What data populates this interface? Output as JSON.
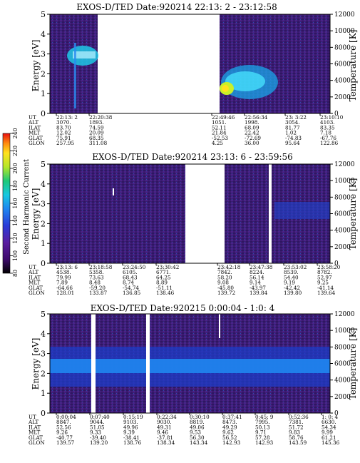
{
  "chart_data": [
    {
      "type": "heatmap",
      "title": "EXOS-D/TED   Date:920214  22:13: 2 - 23:12:58",
      "ylabel": "Energy [eV]",
      "ylim": [
        0,
        5
      ],
      "yticks": [
        "0",
        "1",
        "2",
        "3",
        "4",
        "5"
      ],
      "y2label": "Temperature [K]",
      "y2lim": [
        0,
        12000
      ],
      "y2ticks": [
        "0",
        "2000",
        "4000",
        "6000",
        "8000",
        "10000",
        "12000"
      ],
      "time_range": [
        "22:13:02",
        "23:12:58"
      ],
      "data_gaps": [
        [
          "22:21:00",
          "22:49:30"
        ]
      ],
      "bright_features": [
        {
          "time": [
            "22:15:30",
            "22:19:30"
          ],
          "energy": [
            2.3,
            3.2
          ],
          "level": "high"
        },
        {
          "time": [
            "22:50:00",
            "22:53:30"
          ],
          "energy": [
            0.7,
            1.6
          ],
          "level": "very high"
        },
        {
          "time": [
            "22:50:30",
            "22:59:00"
          ],
          "energy": [
            0.5,
            2.7
          ],
          "level": "high"
        }
      ],
      "ephemeris": {
        "labels": [
          "UT",
          "ALT",
          "ILAT",
          "MLT",
          "GLAT",
          "GLON"
        ],
        "columns": [
          [
            "22:13: 2",
            "3070.",
            "83.70",
            "12.02",
            "75.91",
            "257.95"
          ],
          [
            "22:20:38",
            "1893.",
            "74.59",
            "20.09",
            "68.35",
            "311.08"
          ],
          [
            "22:49:46",
            "1051.",
            "52.11",
            "21.84",
            "-52.53",
            "4.25"
          ],
          [
            "22:56:34",
            "1998.",
            "68.09",
            "22.42",
            "-72.69",
            "36.00"
          ],
          [
            "23: 3:22",
            "3054.",
            "81.77",
            "1.02",
            "-74.83",
            "95.64"
          ],
          [
            "23:10:10",
            "4103.",
            "83.35",
            "7.18",
            "-67.76",
            "122.86"
          ]
        ]
      }
    },
    {
      "type": "heatmap",
      "title": "EXOS-D/TED   Date:920214  23:13: 6 - 23:59:56",
      "ylabel": "Energy [eV]",
      "ylim": [
        0,
        5
      ],
      "yticks": [
        "0",
        "1",
        "2",
        "3",
        "4",
        "5"
      ],
      "y2label": "Temperature [K]",
      "y2lim": [
        0,
        12000
      ],
      "y2ticks": [
        "0",
        "2000",
        "4000",
        "6000",
        "8000",
        "10000",
        "12000"
      ],
      "time_range": [
        "23:13:06",
        "23:59:56"
      ],
      "data_gaps": [
        [
          "23:39:40",
          "23:42:10"
        ],
        [
          "23:50:10",
          "23:50:40"
        ]
      ],
      "bright_features": [
        {
          "time": [
            "23:50:40",
            "23:59:56"
          ],
          "energy": [
            2.0,
            2.8
          ],
          "level": "medium"
        }
      ],
      "ephemeris": {
        "labels": [
          "UT",
          "ALT",
          "ILAT",
          "MLT",
          "GLAT",
          "GLON"
        ],
        "columns": [
          [
            "23:13: 6",
            "4538.",
            "79.99",
            "7.89",
            "-64.66",
            "128.01"
          ],
          [
            "23:18:58",
            "5358.",
            "73.63",
            "8.48",
            "-59.20",
            "133.87"
          ],
          [
            "23:24:50",
            "6105.",
            "68.43",
            "8.74",
            "-54.74",
            "136.85"
          ],
          [
            "23:30:42",
            "6771.",
            "64.25",
            "8.89",
            "-51.11",
            "138.46"
          ],
          [
            "23:42:18",
            "7842.",
            "58.20",
            "9.08",
            "-45.80",
            "139.72"
          ],
          [
            "23:47:38",
            "8224.",
            "56.14",
            "9.14",
            "-43.97",
            "139.84"
          ],
          [
            "23:53:02",
            "8539.",
            "54.40",
            "9.19",
            "-42.42",
            "139.80"
          ],
          [
            "23:58:20",
            "8782.",
            "52.97",
            "9.25",
            "-41.14",
            "139.64"
          ]
        ]
      }
    },
    {
      "type": "heatmap",
      "title": "EXOS-D/TED   Date:920215  0:00:04 - 1:0: 4",
      "ylabel": "Energy [eV]",
      "ylim": [
        0,
        5
      ],
      "yticks": [
        "0",
        "1",
        "2",
        "3",
        "4",
        "5"
      ],
      "y2label": "Temperature [K]",
      "y2lim": [
        0,
        12000
      ],
      "y2ticks": [
        "0",
        "2000",
        "4000",
        "6000",
        "8000",
        "10000",
        "12000"
      ],
      "time_range": [
        "0:00:04",
        "1:00:04"
      ],
      "data_gaps": [
        [
          "0:06:10",
          "0:07:40"
        ],
        [
          "0:24:50",
          "0:26:20"
        ]
      ],
      "bright_features": [
        {
          "time": [
            "0:00:04",
            "1:00:04"
          ],
          "energy": [
            2.2,
            2.8
          ],
          "level": "high"
        },
        {
          "time": [
            "0:00:04",
            "1:00:04"
          ],
          "energy": [
            1.6,
            3.6
          ],
          "level": "medium"
        }
      ],
      "ephemeris": {
        "labels": [
          "UT",
          "ALT",
          "ILAT",
          "MLT",
          "GLAT",
          "GLON"
        ],
        "columns": [
          [
            "0:00:04",
            "8847.",
            "52.56",
            "9.26",
            "-40.77",
            "139.57"
          ],
          [
            "0:07:40",
            "9044.",
            "51.05",
            "9.33",
            "-39.40",
            "139.20"
          ],
          [
            "0:15:19",
            "9103.",
            "49.96",
            "9.39",
            "-38.41",
            "138.76"
          ],
          [
            "0:22:34",
            "9030.",
            "49.31",
            "9.46",
            "-37.81",
            "138.34"
          ],
          [
            "0:30:10",
            "8819.",
            "49.06",
            "9.53",
            "56.30",
            "143.34"
          ],
          [
            "0:37:41",
            "8473.",
            "49.29",
            "9.62",
            "56.52",
            "142.93"
          ],
          [
            "0:45: 9",
            "7995.",
            "50.13",
            "9.71",
            "57.28",
            "142.93"
          ],
          [
            "0:52:36",
            "7381.",
            "51.72",
            "9.83",
            "58.76",
            "143.59"
          ],
          [
            "1: 0: 4",
            "6630.",
            "54.34",
            "9.99",
            "61.21",
            "145.36"
          ]
        ]
      }
    }
  ],
  "colorbar": {
    "label": "Second Harmonic Current",
    "ticks": [
      "80",
      "100",
      "120",
      "140",
      "160",
      "180",
      "200",
      "220",
      "240"
    ],
    "colors": [
      "#000000",
      "#3d0a6b",
      "#5a1ea0",
      "#2a3bd8",
      "#1f86f0",
      "#18c8e0",
      "#1ec878",
      "#b4e628",
      "#ffe21e",
      "#ff8a10",
      "#e81010"
    ]
  }
}
